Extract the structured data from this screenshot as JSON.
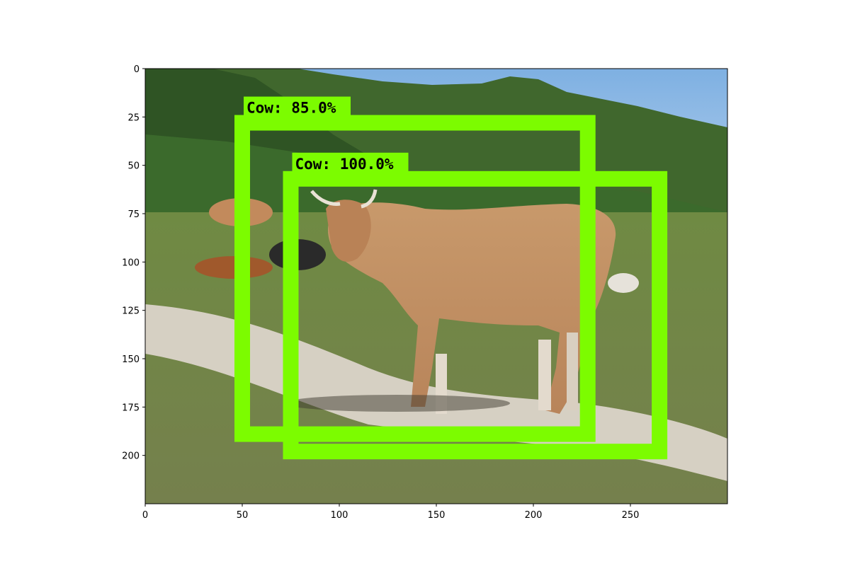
{
  "image": {
    "description_colors": {
      "sky": "#8db8e3",
      "hills": "#3f6e2f",
      "grass": "#7c8a4c",
      "path": "#d8d1c4",
      "cow_main": "#c99b70"
    }
  },
  "axes": {
    "x_ticks": [
      0,
      50,
      100,
      150,
      200,
      250
    ],
    "y_ticks": [
      0,
      25,
      50,
      75,
      100,
      125,
      150,
      175,
      200
    ],
    "x_range": [
      0,
      300
    ],
    "y_range": [
      0,
      225
    ]
  },
  "detections": [
    {
      "label": "Cow:  85.0%",
      "class": "Cow",
      "score": 85.0,
      "color": "#7cfc00",
      "box": {
        "xmin": 50,
        "ymin": 28,
        "xmax": 228,
        "ymax": 189
      }
    },
    {
      "label": "Cow:  100.0%",
      "class": "Cow",
      "score": 100.0,
      "color": "#7cfc00",
      "box": {
        "xmin": 75,
        "ymin": 57,
        "xmax": 265,
        "ymax": 198
      }
    }
  ]
}
